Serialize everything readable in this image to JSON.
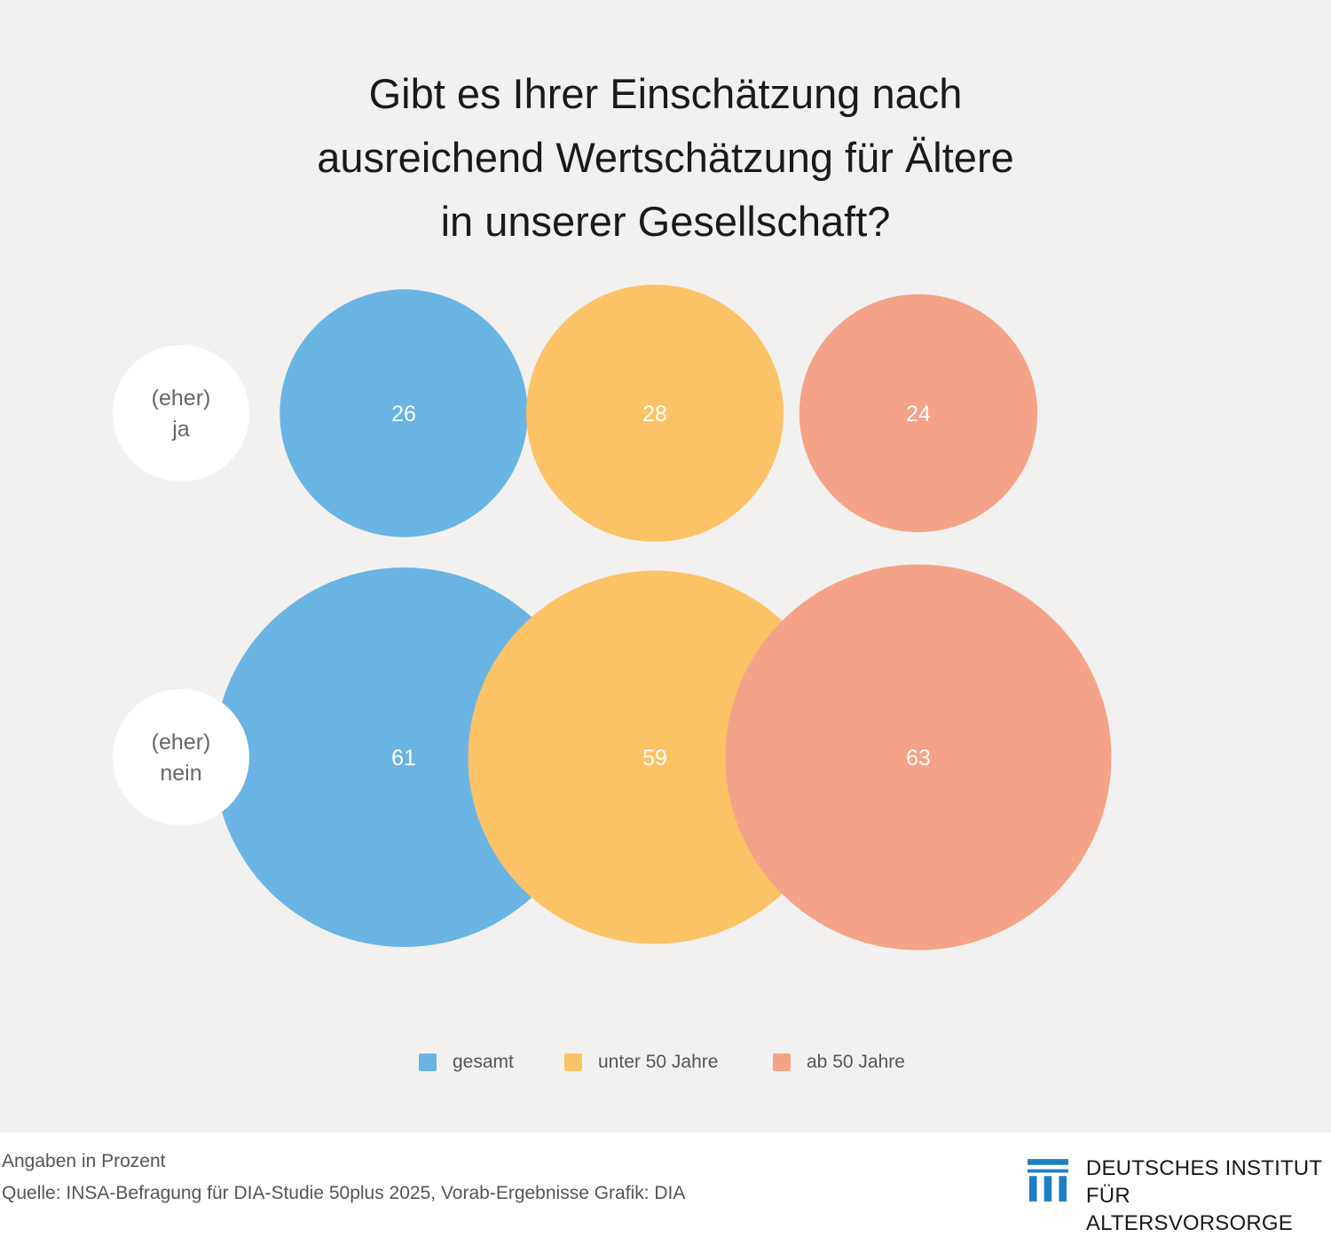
{
  "title": {
    "line1": "Gibt es Ihrer Einschätzung nach",
    "line2": "ausreichend Wertschätzung für Ältere",
    "line3": "in unserer Gesellschaft?"
  },
  "chart_data": {
    "type": "bubble",
    "title": "Gibt es Ihrer Einschätzung nach ausreichend Wertschätzung für Ältere in unserer Gesellschaft?",
    "rows": [
      {
        "label_line1": "(eher)",
        "label_line2": "ja"
      },
      {
        "label_line1": "(eher)",
        "label_line2": "nein"
      }
    ],
    "categories": [
      "(eher) ja",
      "(eher) nein"
    ],
    "series": [
      {
        "name": "gesamt",
        "color": "#6ab4e4",
        "values": [
          26,
          61
        ]
      },
      {
        "name": "unter 50 Jahre",
        "color": "#fbc366",
        "values": [
          28,
          59
        ]
      },
      {
        "name": "ab 50 Jahre",
        "color": "#f4a388",
        "values": [
          24,
          63
        ]
      }
    ],
    "legend_position": "bottom-center",
    "unit_note": "Angaben in Prozent"
  },
  "footer": {
    "unit": "Angaben in Prozent",
    "source": "Quelle: INSA-Befragung für DIA-Studie 50plus 2025, Vorab-Ergebnisse  Grafik: DIA"
  },
  "logo": {
    "line1": "DEUTSCHES INSTITUT",
    "line2": "FÜR ALTERSVORSORGE",
    "color": "#1f7fc4"
  },
  "colors": {
    "background": "#f3f1f0",
    "label_circle": "#ffffff",
    "value_text": "#ffffff"
  }
}
